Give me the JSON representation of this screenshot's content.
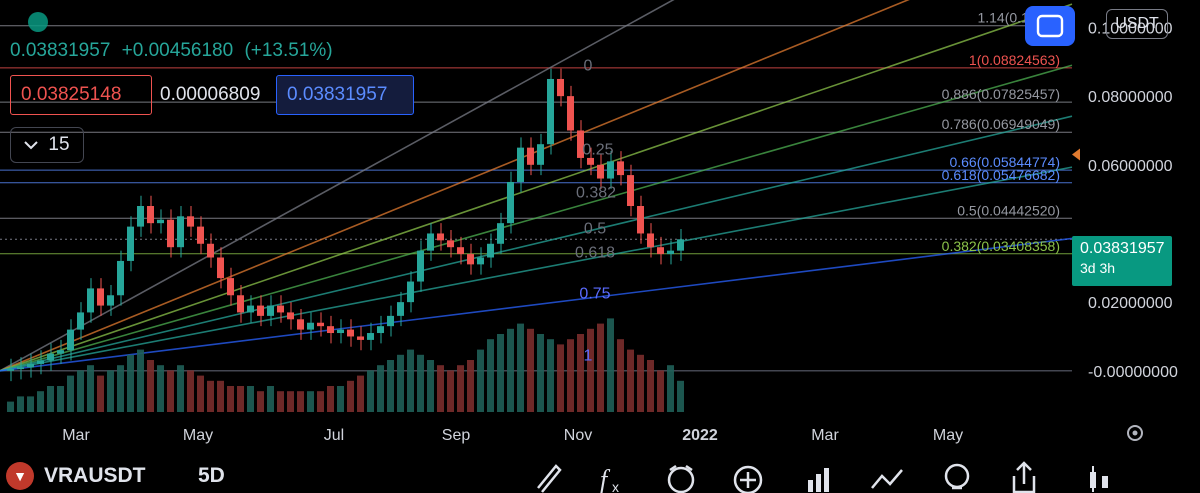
{
  "header": {
    "last_price": "0.03831957",
    "change": "+0.00456180",
    "change_pct": "(+13.51%)",
    "bid": "0.03825148",
    "spread": "0.00006809",
    "ask": "0.03831957",
    "interval": "15",
    "currency": "USDT"
  },
  "price_tag": {
    "price": "0.03831957",
    "countdown": "3d 3h"
  },
  "bottom_bar": {
    "symbol": "VRAUSDT",
    "timeframe": "5D",
    "tools": [
      "brush-icon",
      "fx-icon",
      "alarm-icon",
      "plus-circle-icon",
      "bars-chart-icon",
      "indicators-icon",
      "ideas-icon",
      "share-icon",
      "candles-icon"
    ]
  },
  "colors": {
    "up": "#26a69a",
    "down": "#ef5350",
    "accent": "#2962ff"
  },
  "chart_data": {
    "type": "candlestick",
    "y_ticks": [
      "0.10000000",
      "0.08000000",
      "0.06000000",
      "0.02000000",
      "-0.00000000"
    ],
    "x_ticks": [
      "Mar",
      "May",
      "Jul",
      "Sep",
      "Nov",
      "2022",
      "Mar",
      "May"
    ],
    "fib_levels": [
      {
        "label": "1.14(0.10051",
        "value": 0.10051,
        "color": "#9598a1"
      },
      {
        "label": "1(0.08824563)",
        "value": 0.08824563,
        "color": "#ef5350"
      },
      {
        "label": "0.886(0.07825457)",
        "value": 0.07825457,
        "color": "#9598a1"
      },
      {
        "label": "0.786(0.06949049)",
        "value": 0.06949049,
        "color": "#9598a1"
      },
      {
        "label": "0.66(0.05844774)",
        "value": 0.05844774,
        "color": "#5b8cff"
      },
      {
        "label": "0.618(0.05476682)",
        "value": 0.05476682,
        "color": "#5b8cff"
      },
      {
        "label": "0.5(0.04442520)",
        "value": 0.0444252,
        "color": "#9598a1"
      },
      {
        "label": "0.382(0.03408358)",
        "value": 0.03408358,
        "color": "#8bc34a"
      }
    ],
    "fan_labels": [
      "0",
      "0.25",
      "0.382",
      "0.5",
      "0.618",
      "0.75",
      "1"
    ],
    "candles": [
      [
        0.0,
        0.0005
      ],
      [
        0.0005,
        0.001
      ],
      [
        0.001,
        0.002
      ],
      [
        0.002,
        0.003
      ],
      [
        0.003,
        0.005
      ],
      [
        0.005,
        0.006
      ],
      [
        0.006,
        0.012
      ],
      [
        0.012,
        0.017
      ],
      [
        0.017,
        0.024
      ],
      [
        0.024,
        0.019
      ],
      [
        0.019,
        0.022
      ],
      [
        0.022,
        0.032
      ],
      [
        0.032,
        0.042
      ],
      [
        0.042,
        0.048
      ],
      [
        0.048,
        0.043
      ],
      [
        0.043,
        0.044
      ],
      [
        0.044,
        0.036
      ],
      [
        0.036,
        0.045
      ],
      [
        0.045,
        0.042
      ],
      [
        0.042,
        0.037
      ],
      [
        0.037,
        0.033
      ],
      [
        0.033,
        0.027
      ],
      [
        0.027,
        0.022
      ],
      [
        0.022,
        0.017
      ],
      [
        0.017,
        0.019
      ],
      [
        0.019,
        0.016
      ],
      [
        0.016,
        0.019
      ],
      [
        0.019,
        0.017
      ],
      [
        0.017,
        0.015
      ],
      [
        0.015,
        0.012
      ],
      [
        0.012,
        0.014
      ],
      [
        0.014,
        0.013
      ],
      [
        0.013,
        0.011
      ],
      [
        0.011,
        0.012
      ],
      [
        0.012,
        0.01
      ],
      [
        0.01,
        0.009
      ],
      [
        0.009,
        0.011
      ],
      [
        0.011,
        0.013
      ],
      [
        0.013,
        0.016
      ],
      [
        0.016,
        0.02
      ],
      [
        0.02,
        0.026
      ],
      [
        0.026,
        0.035
      ],
      [
        0.035,
        0.04
      ],
      [
        0.04,
        0.038
      ],
      [
        0.038,
        0.036
      ],
      [
        0.036,
        0.034
      ],
      [
        0.034,
        0.031
      ],
      [
        0.031,
        0.033
      ],
      [
        0.033,
        0.037
      ],
      [
        0.037,
        0.043
      ],
      [
        0.043,
        0.055
      ],
      [
        0.055,
        0.065
      ],
      [
        0.065,
        0.06
      ],
      [
        0.06,
        0.066
      ],
      [
        0.066,
        0.085
      ],
      [
        0.085,
        0.08
      ],
      [
        0.08,
        0.07
      ],
      [
        0.07,
        0.062
      ],
      [
        0.062,
        0.06
      ],
      [
        0.06,
        0.056
      ],
      [
        0.056,
        0.061
      ],
      [
        0.061,
        0.057
      ],
      [
        0.057,
        0.048
      ],
      [
        0.048,
        0.04
      ],
      [
        0.04,
        0.036
      ],
      [
        0.036,
        0.034
      ],
      [
        0.034,
        0.035
      ],
      [
        0.035,
        0.0383
      ]
    ],
    "volume_up": [
      2,
      3,
      3,
      4,
      5,
      5,
      7,
      8,
      9,
      7,
      8,
      9,
      11,
      12,
      10,
      9,
      8,
      9,
      8,
      7,
      6,
      6,
      5,
      5,
      5,
      4,
      5,
      4,
      4,
      4,
      4,
      4,
      5,
      5,
      6,
      7,
      8,
      9,
      10,
      11,
      12,
      11,
      10,
      9,
      8,
      9,
      10,
      12,
      14,
      15,
      16,
      17,
      16,
      15,
      14,
      13,
      14,
      15,
      16,
      17,
      18,
      14,
      12,
      11,
      10,
      8,
      9,
      6
    ],
    "ylim": [
      -0.012,
      0.108
    ]
  }
}
